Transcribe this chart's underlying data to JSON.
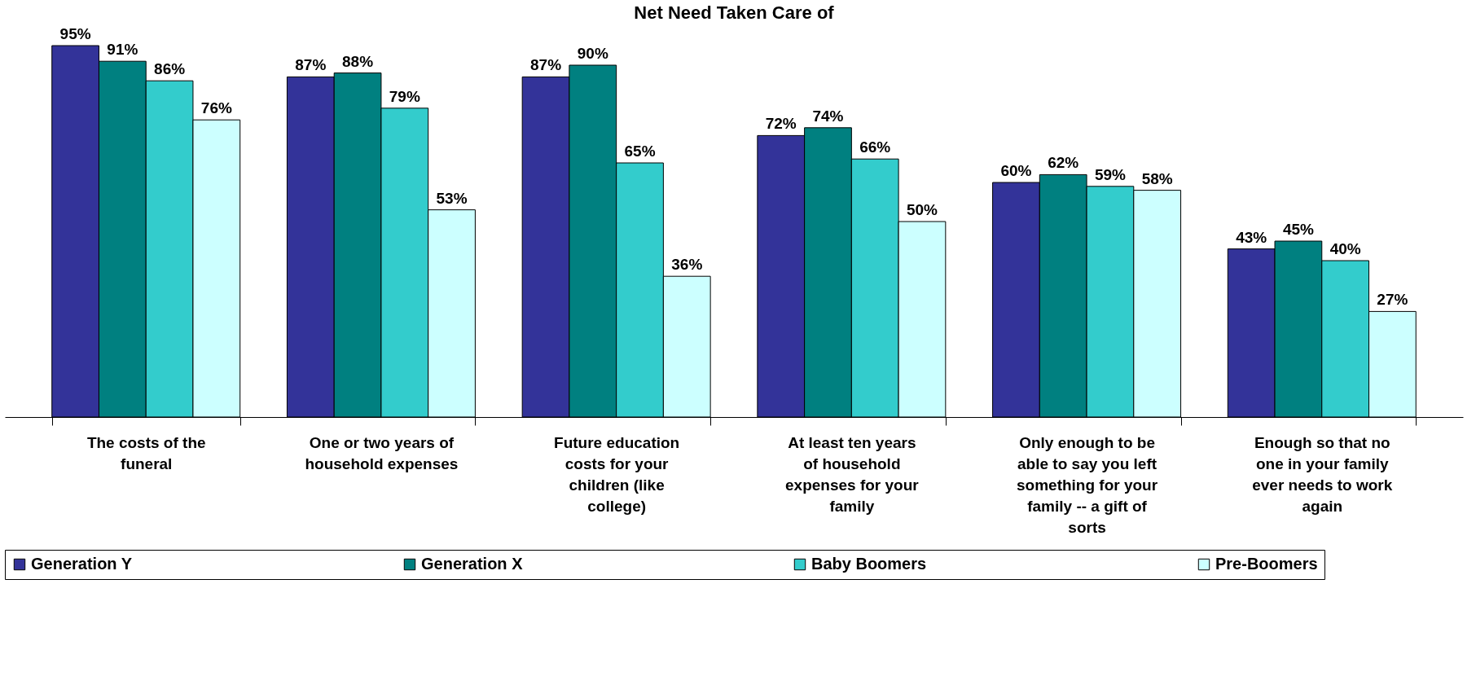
{
  "chart_data": {
    "type": "bar",
    "title": "Net Need Taken Care of",
    "categories": [
      "The costs of the funeral",
      "One or two years of household expenses",
      "Future education costs for your children (like college)",
      "At least ten years of household expenses for your family",
      "Only enough to be able to say you left something for your family -- a gift of sorts",
      "Enough so that no one in your family ever needs to work again"
    ],
    "series": [
      {
        "name": "Generation Y",
        "color": "#333399",
        "values": [
          95,
          87,
          87,
          72,
          60,
          43
        ],
        "value_labels": [
          "95%",
          "87%",
          "87%",
          "72%",
          "60%",
          "43%"
        ]
      },
      {
        "name": "Generation X",
        "color": "#008080",
        "values": [
          91,
          88,
          90,
          74,
          62,
          45
        ],
        "value_labels": [
          "91%",
          "88%",
          "90%",
          "74%",
          "62%",
          "45%"
        ]
      },
      {
        "name": "Baby Boomers",
        "color": "#33cccc",
        "values": [
          86,
          79,
          65,
          66,
          59,
          40
        ],
        "value_labels": [
          "86%",
          "79%",
          "65%",
          "66%",
          "59%",
          "40%"
        ]
      },
      {
        "name": "Pre-Boomers",
        "color": "#ccffff",
        "values": [
          76,
          53,
          36,
          50,
          58,
          27
        ],
        "value_labels": [
          "76%",
          "53%",
          "36%",
          "50%",
          "58%",
          "27%"
        ]
      }
    ],
    "legend": "bottom",
    "grid": false
  }
}
